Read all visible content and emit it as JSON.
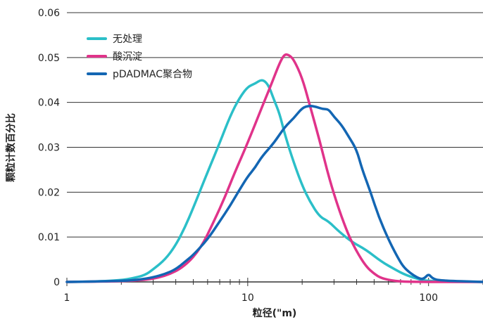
{
  "chart_data": {
    "type": "line",
    "xscale": "log",
    "xlim": [
      1,
      200
    ],
    "ylim": [
      0,
      0.06
    ],
    "xlabel": "粒径(\"m)",
    "ylabel": "颗粒计数百分比",
    "xticks": [
      {
        "value": 1,
        "label": "1"
      },
      {
        "value": 10,
        "label": "10"
      },
      {
        "value": 100,
        "label": "100"
      }
    ],
    "yticks": [
      {
        "value": 0,
        "label": "0"
      },
      {
        "value": 0.01,
        "label": "0.01"
      },
      {
        "value": 0.02,
        "label": "0.02"
      },
      {
        "value": 0.03,
        "label": "0.03"
      },
      {
        "value": 0.04,
        "label": "0.04"
      },
      {
        "value": 0.05,
        "label": "0.05"
      },
      {
        "value": 0.06,
        "label": "0.06"
      }
    ],
    "grid": "horizontal",
    "legend_position": "top-left",
    "series": [
      {
        "name": "无处理",
        "color": "#2bbfc8",
        "points": [
          [
            1,
            0
          ],
          [
            1.5,
            0.0001
          ],
          [
            2,
            0.0004
          ],
          [
            2.3,
            0.0008
          ],
          [
            2.7,
            0.0015
          ],
          [
            3,
            0.0028
          ],
          [
            3.5,
            0.005
          ],
          [
            4,
            0.0082
          ],
          [
            4.5,
            0.0122
          ],
          [
            5,
            0.0165
          ],
          [
            6,
            0.0245
          ],
          [
            7,
            0.031
          ],
          [
            8,
            0.037
          ],
          [
            9,
            0.041
          ],
          [
            10,
            0.0435
          ],
          [
            11,
            0.0442
          ],
          [
            12,
            0.0452
          ],
          [
            13,
            0.044
          ],
          [
            14,
            0.0405
          ],
          [
            15,
            0.0375
          ],
          [
            16,
            0.033
          ],
          [
            18,
            0.0265
          ],
          [
            20,
            0.0215
          ],
          [
            22,
            0.018
          ],
          [
            25,
            0.0145
          ],
          [
            28,
            0.0135
          ],
          [
            32,
            0.0112
          ],
          [
            38,
            0.0088
          ],
          [
            45,
            0.0072
          ],
          [
            55,
            0.0045
          ],
          [
            65,
            0.0028
          ],
          [
            75,
            0.0015
          ],
          [
            90,
            0.0005
          ],
          [
            100,
            0.0002
          ],
          [
            200,
            0
          ]
        ]
      },
      {
        "name": "酸沉淀",
        "color": "#e0338a",
        "points": [
          [
            1,
            0
          ],
          [
            2.5,
            0.0002
          ],
          [
            3.5,
            0.0012
          ],
          [
            4.5,
            0.0035
          ],
          [
            5.5,
            0.0075
          ],
          [
            6.5,
            0.0135
          ],
          [
            7.5,
            0.019
          ],
          [
            8.5,
            0.0245
          ],
          [
            10,
            0.031
          ],
          [
            12,
            0.039
          ],
          [
            13.5,
            0.044
          ],
          [
            15,
            0.0488
          ],
          [
            16,
            0.0508
          ],
          [
            17,
            0.0505
          ],
          [
            18,
            0.0495
          ],
          [
            20,
            0.0455
          ],
          [
            22,
            0.0395
          ],
          [
            25,
            0.0315
          ],
          [
            28,
            0.0235
          ],
          [
            32,
            0.016
          ],
          [
            36,
            0.0105
          ],
          [
            40,
            0.0068
          ],
          [
            45,
            0.0035
          ],
          [
            50,
            0.0018
          ],
          [
            55,
            0.0008
          ],
          [
            65,
            0.0002
          ],
          [
            80,
            0
          ],
          [
            200,
            0
          ]
        ]
      },
      {
        "name": "pDADMAC聚合物",
        "color": "#1366b3",
        "points": [
          [
            1,
            0
          ],
          [
            2,
            0.0002
          ],
          [
            2.5,
            0.0005
          ],
          [
            3,
            0.001
          ],
          [
            3.5,
            0.0018
          ],
          [
            4,
            0.0028
          ],
          [
            4.5,
            0.0045
          ],
          [
            5,
            0.006
          ],
          [
            6,
            0.0095
          ],
          [
            7,
            0.0135
          ],
          [
            8,
            0.017
          ],
          [
            9,
            0.0205
          ],
          [
            10,
            0.0235
          ],
          [
            11,
            0.0255
          ],
          [
            12,
            0.028
          ],
          [
            14,
            0.031
          ],
          [
            16,
            0.0345
          ],
          [
            18,
            0.0365
          ],
          [
            20,
            0.0388
          ],
          [
            22,
            0.0393
          ],
          [
            24,
            0.039
          ],
          [
            26,
            0.0385
          ],
          [
            28,
            0.0385
          ],
          [
            30,
            0.0368
          ],
          [
            33,
            0.035
          ],
          [
            36,
            0.0325
          ],
          [
            40,
            0.0295
          ],
          [
            43,
            0.025
          ],
          [
            48,
            0.0198
          ],
          [
            53,
            0.0145
          ],
          [
            60,
            0.0095
          ],
          [
            66,
            0.0062
          ],
          [
            72,
            0.0035
          ],
          [
            80,
            0.0018
          ],
          [
            90,
            0.0006
          ],
          [
            95,
            0.0008
          ],
          [
            100,
            0.0018
          ],
          [
            105,
            0.0008
          ],
          [
            115,
            0.0003
          ],
          [
            200,
            0
          ]
        ]
      }
    ]
  }
}
